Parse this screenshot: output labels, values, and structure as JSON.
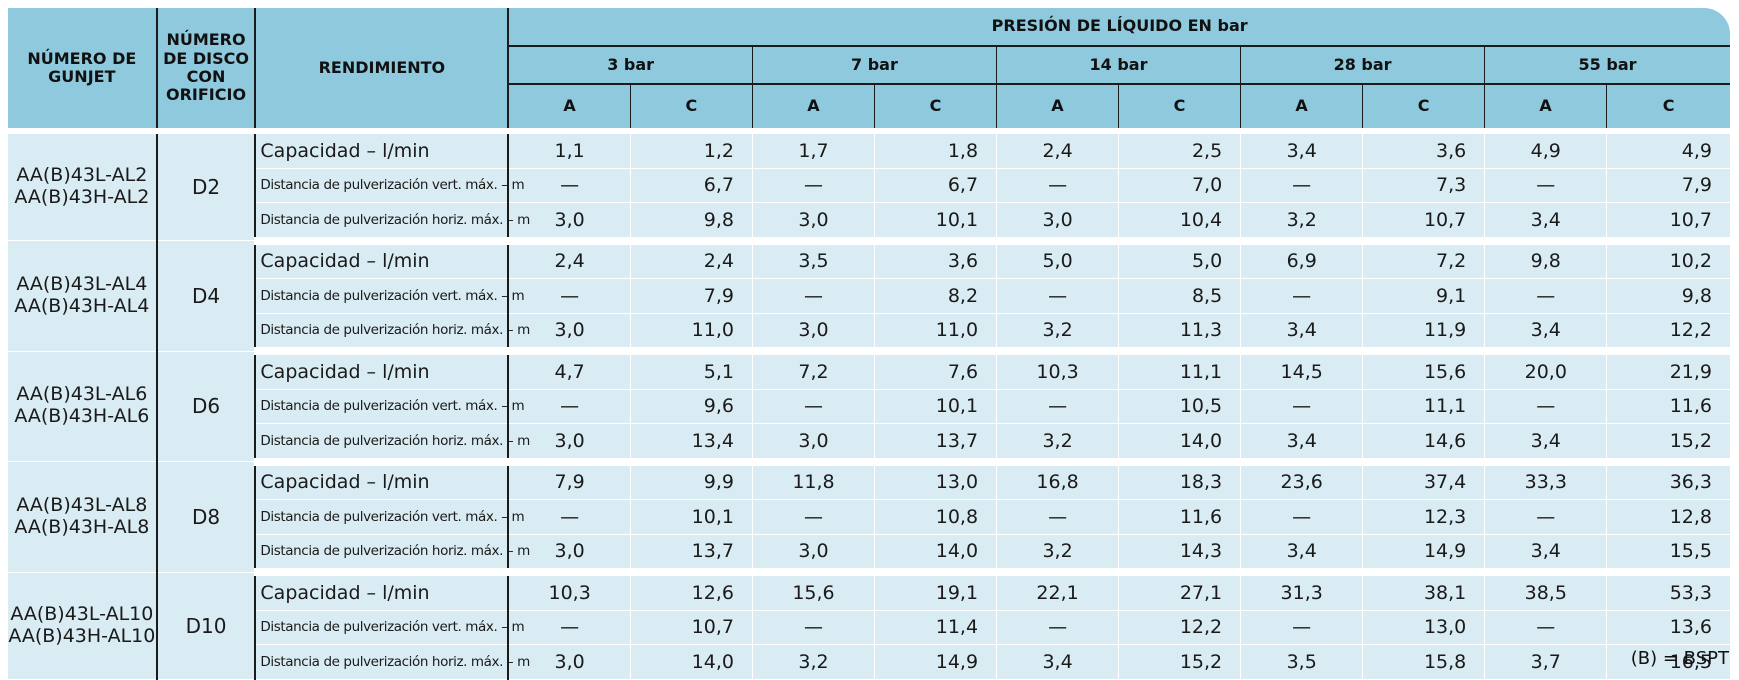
{
  "header": {
    "col_gunjet": "NÚMERO DE GUNJET",
    "col_disc": "NÚMERO DE DISCO CON ORIFICIO",
    "col_performance": "RENDIMIENTO",
    "pressure_title": "PRESIÓN DE LÍQUIDO EN bar",
    "pressures": [
      "3 bar",
      "7 bar",
      "14 bar",
      "28 bar",
      "55 bar"
    ],
    "sub_a": "A",
    "sub_c": "C"
  },
  "labels": {
    "capacity": "Capacidad – l/min",
    "vert": "Distancia de pulverización vert. máx. – m",
    "horiz": "Distancia de pulverización horiz. máx. – m"
  },
  "groups": [
    {
      "gunjet_l": "AA(B)43L-AL2",
      "gunjet_h": "AA(B)43H-AL2",
      "disc": "D2",
      "rows": [
        [
          "1,1",
          "1,2",
          "1,7",
          "1,8",
          "2,4",
          "2,5",
          "3,4",
          "3,6",
          "4,9",
          "4,9"
        ],
        [
          "—",
          "6,7",
          "—",
          "6,7",
          "—",
          "7,0",
          "—",
          "7,3",
          "—",
          "7,9"
        ],
        [
          "3,0",
          "9,8",
          "3,0",
          "10,1",
          "3,0",
          "10,4",
          "3,2",
          "10,7",
          "3,4",
          "10,7"
        ]
      ]
    },
    {
      "gunjet_l": "AA(B)43L-AL4",
      "gunjet_h": "AA(B)43H-AL4",
      "disc": "D4",
      "rows": [
        [
          "2,4",
          "2,4",
          "3,5",
          "3,6",
          "5,0",
          "5,0",
          "6,9",
          "7,2",
          "9,8",
          "10,2"
        ],
        [
          "—",
          "7,9",
          "—",
          "8,2",
          "—",
          "8,5",
          "—",
          "9,1",
          "—",
          "9,8"
        ],
        [
          "3,0",
          "11,0",
          "3,0",
          "11,0",
          "3,2",
          "11,3",
          "3,4",
          "11,9",
          "3,4",
          "12,2"
        ]
      ]
    },
    {
      "gunjet_l": "AA(B)43L-AL6",
      "gunjet_h": "AA(B)43H-AL6",
      "disc": "D6",
      "rows": [
        [
          "4,7",
          "5,1",
          "7,2",
          "7,6",
          "10,3",
          "11,1",
          "14,5",
          "15,6",
          "20,0",
          "21,9"
        ],
        [
          "—",
          "9,6",
          "—",
          "10,1",
          "—",
          "10,5",
          "—",
          "11,1",
          "—",
          "11,6"
        ],
        [
          "3,0",
          "13,4",
          "3,0",
          "13,7",
          "3,2",
          "14,0",
          "3,4",
          "14,6",
          "3,4",
          "15,2"
        ]
      ]
    },
    {
      "gunjet_l": "AA(B)43L-AL8",
      "gunjet_h": "AA(B)43H-AL8",
      "disc": "D8",
      "rows": [
        [
          "7,9",
          "9,9",
          "11,8",
          "13,0",
          "16,8",
          "18,3",
          "23,6",
          "37,4",
          "33,3",
          "36,3"
        ],
        [
          "—",
          "10,1",
          "—",
          "10,8",
          "—",
          "11,6",
          "—",
          "12,3",
          "—",
          "12,8"
        ],
        [
          "3,0",
          "13,7",
          "3,0",
          "14,0",
          "3,2",
          "14,3",
          "3,4",
          "14,9",
          "3,4",
          "15,5"
        ]
      ]
    },
    {
      "gunjet_l": "AA(B)43L-AL10",
      "gunjet_h": "AA(B)43H-AL10",
      "disc": "D10",
      "rows": [
        [
          "10,3",
          "12,6",
          "15,6",
          "19,1",
          "22,1",
          "27,1",
          "31,3",
          "38,1",
          "38,5",
          "53,3"
        ],
        [
          "—",
          "10,7",
          "—",
          "11,4",
          "—",
          "12,2",
          "—",
          "13,0",
          "—",
          "13,6"
        ],
        [
          "3,0",
          "14,0",
          "3,2",
          "14,9",
          "3,4",
          "15,2",
          "3,5",
          "15,8",
          "3,7",
          "16,5"
        ]
      ]
    }
  ],
  "footnote": "(B) = BSPT",
  "colors": {
    "header_bg": "#8ec9de",
    "cell_bg": "#d9ebf3"
  }
}
